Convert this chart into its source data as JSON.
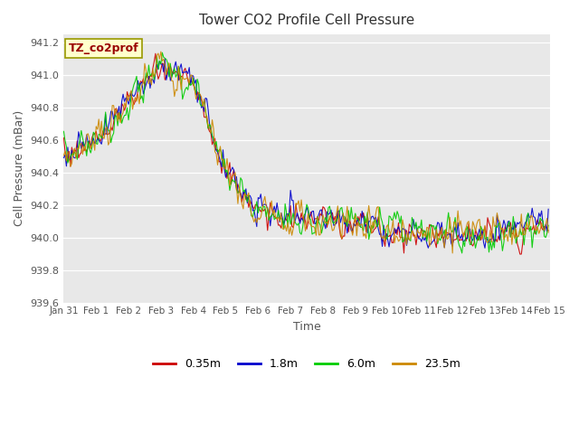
{
  "title": "Tower CO2 Profile Cell Pressure",
  "xlabel": "Time",
  "ylabel": "Cell Pressure (mBar)",
  "ylim": [
    939.6,
    941.25
  ],
  "xlim": [
    0,
    360
  ],
  "plot_bg": "#e8e8e8",
  "legend_label": "TZ_co2prof",
  "series_labels": [
    "0.35m",
    "1.8m",
    "6.0m",
    "23.5m"
  ],
  "series_colors": [
    "#cc0000",
    "#0000cc",
    "#00cc00",
    "#cc8800"
  ],
  "xtick_positions": [
    0,
    24,
    48,
    72,
    96,
    120,
    144,
    168,
    192,
    216,
    240,
    264,
    288,
    312,
    336,
    360
  ],
  "xtick_labels": [
    "Jan 31",
    "Feb 1",
    "Feb 2",
    "Feb 3",
    "Feb 4",
    "Feb 5",
    "Feb 6",
    "Feb 7",
    "Feb 8",
    "Feb 9",
    "Feb 10",
    "Feb 11",
    "Feb 12",
    "Feb 13",
    "Feb 14",
    "Feb 15"
  ],
  "ytick_vals": [
    939.6,
    939.8,
    940.0,
    940.2,
    940.4,
    940.6,
    940.8,
    941.0,
    941.2
  ]
}
